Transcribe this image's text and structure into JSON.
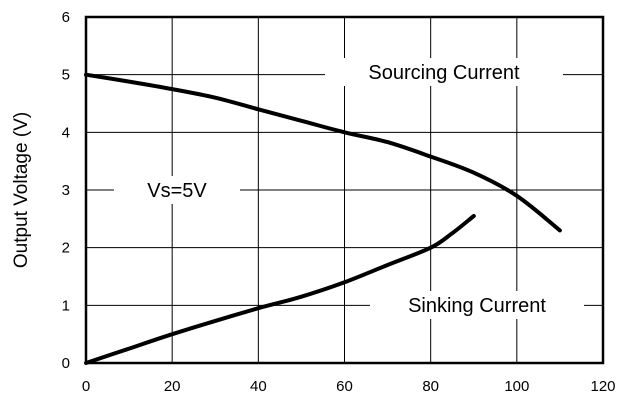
{
  "chart_data": {
    "type": "line",
    "title": "",
    "xlabel": "",
    "ylabel": "Output Voltage (V)",
    "xlim": [
      0,
      120
    ],
    "ylim": [
      0,
      6
    ],
    "xticks": [
      "0",
      "20",
      "40",
      "60",
      "80",
      "100",
      "120"
    ],
    "yticks": [
      "0",
      "1",
      "2",
      "3",
      "4",
      "5",
      "6"
    ],
    "grid": true,
    "series": [
      {
        "name": "Sourcing Current",
        "x": [
          0,
          10,
          20,
          30,
          40,
          50,
          60,
          70,
          80,
          90,
          100,
          110
        ],
        "y": [
          5.0,
          4.88,
          4.75,
          4.6,
          4.4,
          4.2,
          4.0,
          3.83,
          3.58,
          3.3,
          2.9,
          2.3
        ]
      },
      {
        "name": "Sinking Current",
        "x": [
          0,
          10,
          20,
          30,
          40,
          50,
          60,
          70,
          80,
          85,
          90
        ],
        "y": [
          0,
          0.25,
          0.5,
          0.73,
          0.95,
          1.15,
          1.4,
          1.7,
          2.0,
          2.25,
          2.55
        ]
      }
    ],
    "annotations": [
      "Vs=5V"
    ]
  }
}
